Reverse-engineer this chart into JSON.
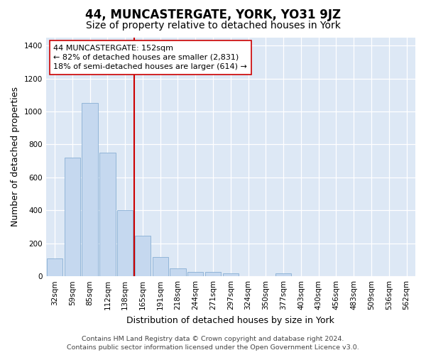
{
  "title": "44, MUNCASTERGATE, YORK, YO31 9JZ",
  "subtitle": "Size of property relative to detached houses in York",
  "xlabel": "Distribution of detached houses by size in York",
  "ylabel": "Number of detached properties",
  "categories": [
    "32sqm",
    "59sqm",
    "85sqm",
    "112sqm",
    "138sqm",
    "165sqm",
    "191sqm",
    "218sqm",
    "244sqm",
    "271sqm",
    "297sqm",
    "324sqm",
    "350sqm",
    "377sqm",
    "403sqm",
    "430sqm",
    "456sqm",
    "483sqm",
    "509sqm",
    "536sqm",
    "562sqm"
  ],
  "values": [
    108,
    720,
    1050,
    750,
    400,
    245,
    115,
    48,
    28,
    28,
    20,
    0,
    0,
    18,
    0,
    0,
    0,
    0,
    0,
    0,
    0
  ],
  "bar_color": "#c5d8ef",
  "bar_edge_color": "#88afd4",
  "vline_color": "#cc0000",
  "vline_x_index": 4.5,
  "annotation_line1": "44 MUNCASTERGATE: 152sqm",
  "annotation_line2": "← 82% of detached houses are smaller (2,831)",
  "annotation_line3": "18% of semi-detached houses are larger (614) →",
  "annotation_box_color": "#ffffff",
  "annotation_box_edge_color": "#cc0000",
  "ylim": [
    0,
    1450
  ],
  "yticks": [
    0,
    200,
    400,
    600,
    800,
    1000,
    1200,
    1400
  ],
  "fig_bg_color": "#ffffff",
  "plot_bg_color": "#dde8f5",
  "grid_color": "#ffffff",
  "footer_line1": "Contains HM Land Registry data © Crown copyright and database right 2024.",
  "footer_line2": "Contains public sector information licensed under the Open Government Licence v3.0.",
  "title_fontsize": 12,
  "subtitle_fontsize": 10,
  "axis_label_fontsize": 9,
  "tick_fontsize": 7.5,
  "annotation_fontsize": 8,
  "footer_fontsize": 6.8
}
